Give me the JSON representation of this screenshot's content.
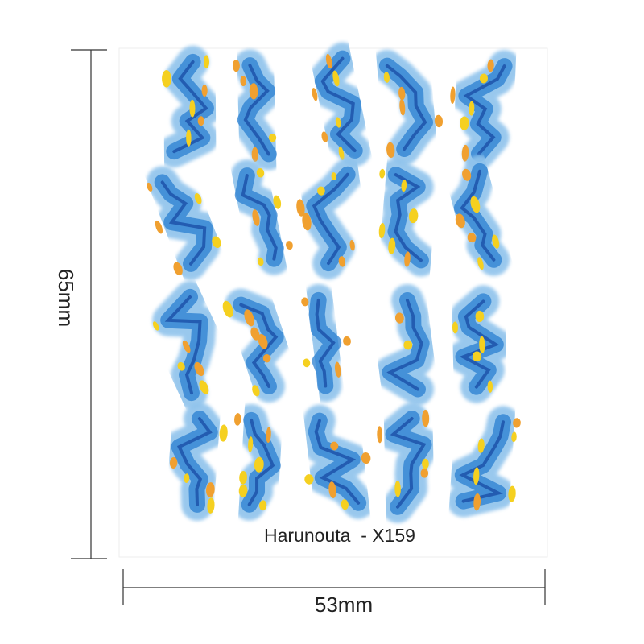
{
  "height_label": "65mm",
  "width_label": "53mm",
  "product_label": "Harunouta  - X159"
}
